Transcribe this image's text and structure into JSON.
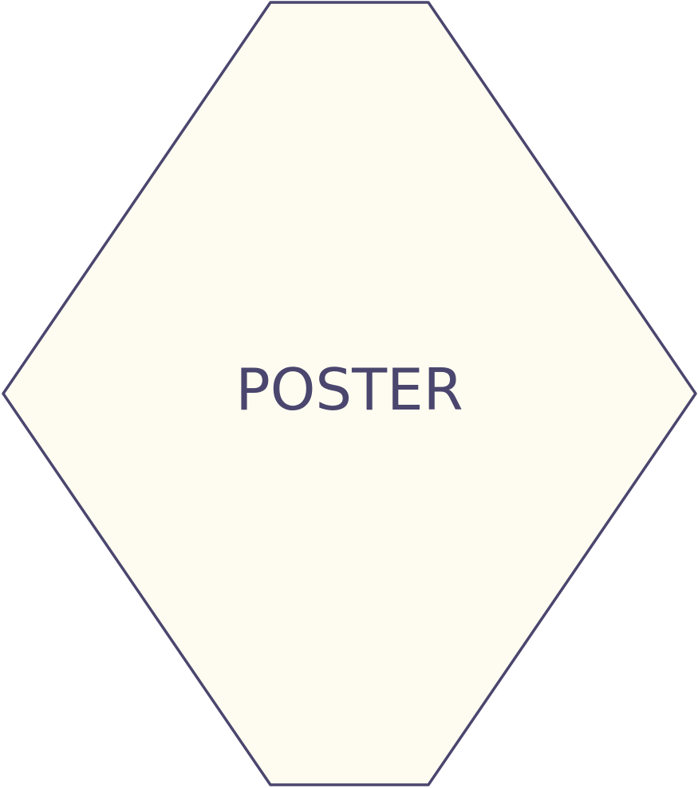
{
  "shape": {
    "label": "POSTER",
    "fill_color": "#fefcf0",
    "stroke_color": "#4a466e",
    "text_color": "#4a466e"
  }
}
